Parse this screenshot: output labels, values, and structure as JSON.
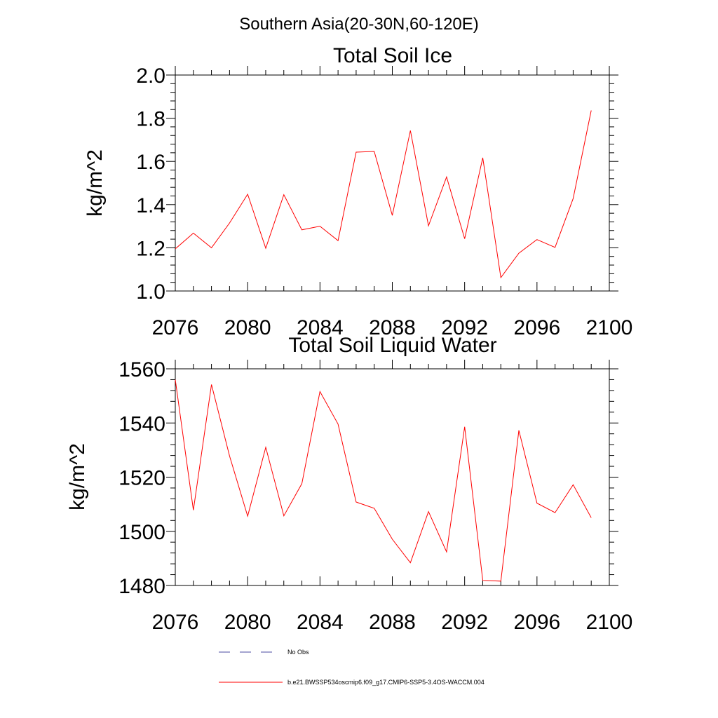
{
  "figure_title": "Southern Asia(20-30N,60-120E)",
  "colors": {
    "model": "#ff0000",
    "obs": "#4a4aa0",
    "frame": "#000000"
  },
  "legend": {
    "obs_label": "No Obs",
    "model_label": "b.e21.BWSSP534oscmip6.f09_g17.CMIP6-SSP5-3.4OS-WACCM.004"
  },
  "chart_data": [
    {
      "type": "line",
      "title": "Total Soil Ice",
      "xlabel": "",
      "ylabel": "kg/m^2",
      "xlim": [
        2076,
        2100
      ],
      "ylim": [
        1.0,
        2.0
      ],
      "xticks": [
        2076,
        2080,
        2084,
        2088,
        2092,
        2096,
        2100
      ],
      "xtick_labels": [
        "2076",
        "2080",
        "2084",
        "2088",
        "2092",
        "2096",
        "2100"
      ],
      "yticks": [
        1.0,
        1.2,
        1.4,
        1.6,
        1.8,
        2.0
      ],
      "ytick_labels": [
        "1.0",
        "1.2",
        "1.4",
        "1.6",
        "1.8",
        "2.0"
      ],
      "series": [
        {
          "name": "b.e21.BWSSP534oscmip6.f09_g17.CMIP6-SSP5-3.4OS-WACCM.004",
          "x": [
            2076,
            2077,
            2078,
            2079,
            2080,
            2081,
            2082,
            2083,
            2084,
            2085,
            2086,
            2087,
            2088,
            2089,
            2090,
            2091,
            2092,
            2093,
            2094,
            2095,
            2096,
            2097,
            2098,
            2099
          ],
          "values": [
            1.195,
            1.268,
            1.2,
            1.315,
            1.448,
            1.198,
            1.446,
            1.283,
            1.3,
            1.233,
            1.643,
            1.646,
            1.35,
            1.743,
            1.302,
            1.528,
            1.242,
            1.617,
            1.062,
            1.175,
            1.238,
            1.202,
            1.428,
            1.836
          ]
        }
      ]
    },
    {
      "type": "line",
      "title": "Total Soil Liquid Water",
      "xlabel": "",
      "ylabel": "kg/m^2",
      "xlim": [
        2076,
        2100
      ],
      "ylim": [
        1480,
        1560
      ],
      "xticks": [
        2076,
        2080,
        2084,
        2088,
        2092,
        2096,
        2100
      ],
      "xtick_labels": [
        "2076",
        "2080",
        "2084",
        "2088",
        "2092",
        "2096",
        "2100"
      ],
      "yticks": [
        1480,
        1500,
        1520,
        1540,
        1560
      ],
      "ytick_labels": [
        "1480",
        "1500",
        "1520",
        "1540",
        "1560"
      ],
      "series": [
        {
          "name": "b.e21.BWSSP534oscmip6.f09_g17.CMIP6-SSP5-3.4OS-WACCM.004",
          "x": [
            2076,
            2077,
            2078,
            2079,
            2080,
            2081,
            2082,
            2083,
            2084,
            2085,
            2086,
            2087,
            2088,
            2089,
            2090,
            2091,
            2092,
            2093,
            2094,
            2095,
            2096,
            2097,
            2098,
            2099
          ],
          "values": [
            1556.0,
            1507.8,
            1554.2,
            1527.8,
            1505.6,
            1531.0,
            1505.7,
            1517.6,
            1551.6,
            1539.6,
            1510.8,
            1508.5,
            1497.1,
            1488.4,
            1507.3,
            1492.4,
            1538.6,
            1481.9,
            1481.6,
            1537.3,
            1510.4,
            1506.9,
            1517.2,
            1505.0
          ]
        }
      ]
    }
  ]
}
